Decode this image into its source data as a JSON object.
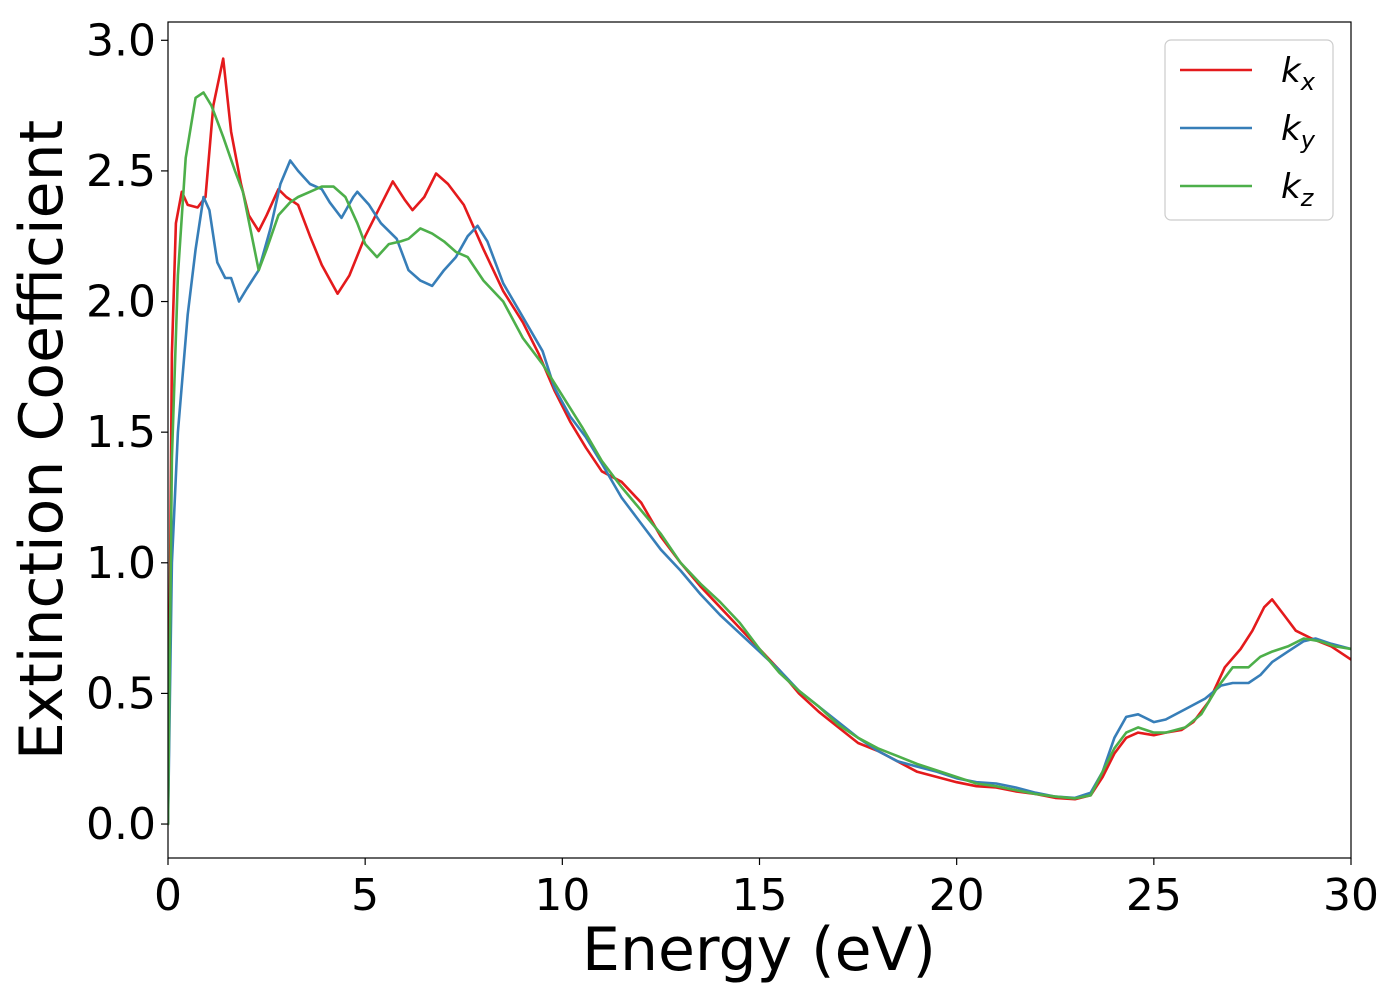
{
  "chart_data": {
    "type": "line",
    "xlabel": "Energy (eV)",
    "ylabel": "Extinction Coefficient",
    "xlim": [
      0,
      30
    ],
    "ylim": [
      -0.13,
      3.07
    ],
    "xticks": [
      0,
      5,
      10,
      15,
      20,
      25,
      30
    ],
    "xtick_labels": [
      "0",
      "5",
      "10",
      "15",
      "20",
      "25",
      "30"
    ],
    "yticks": [
      0.0,
      0.5,
      1.0,
      1.5,
      2.0,
      2.5,
      3.0
    ],
    "ytick_labels": [
      "0.0",
      "0.5",
      "1.0",
      "1.5",
      "2.0",
      "2.5",
      "3.0"
    ],
    "grid": false,
    "legend_position": "top-right",
    "series": [
      {
        "name": "k",
        "subscript": "x",
        "color": "#e41a1c",
        "points": [
          [
            0,
            0
          ],
          [
            0.1,
            1.8
          ],
          [
            0.2,
            2.3
          ],
          [
            0.35,
            2.42
          ],
          [
            0.5,
            2.37
          ],
          [
            0.75,
            2.36
          ],
          [
            0.95,
            2.4
          ],
          [
            1.15,
            2.75
          ],
          [
            1.4,
            2.93
          ],
          [
            1.6,
            2.65
          ],
          [
            1.85,
            2.45
          ],
          [
            2.05,
            2.33
          ],
          [
            2.3,
            2.27
          ],
          [
            2.5,
            2.33
          ],
          [
            2.8,
            2.43
          ],
          [
            3.0,
            2.4
          ],
          [
            3.3,
            2.37
          ],
          [
            3.6,
            2.25
          ],
          [
            3.9,
            2.14
          ],
          [
            4.3,
            2.03
          ],
          [
            4.6,
            2.1
          ],
          [
            5.0,
            2.25
          ],
          [
            5.3,
            2.34
          ],
          [
            5.7,
            2.46
          ],
          [
            6.0,
            2.39
          ],
          [
            6.2,
            2.35
          ],
          [
            6.5,
            2.4
          ],
          [
            6.8,
            2.49
          ],
          [
            7.1,
            2.45
          ],
          [
            7.5,
            2.37
          ],
          [
            8.0,
            2.2
          ],
          [
            8.5,
            2.04
          ],
          [
            9.0,
            1.92
          ],
          [
            9.4,
            1.8
          ],
          [
            9.8,
            1.66
          ],
          [
            10.2,
            1.54
          ],
          [
            10.6,
            1.44
          ],
          [
            11.0,
            1.35
          ],
          [
            11.5,
            1.31
          ],
          [
            12.0,
            1.23
          ],
          [
            12.5,
            1.1
          ],
          [
            13.0,
            1.0
          ],
          [
            13.5,
            0.91
          ],
          [
            14.0,
            0.83
          ],
          [
            14.5,
            0.75
          ],
          [
            15.0,
            0.67
          ],
          [
            15.5,
            0.59
          ],
          [
            16.0,
            0.5
          ],
          [
            16.5,
            0.43
          ],
          [
            17.0,
            0.37
          ],
          [
            17.5,
            0.31
          ],
          [
            18.0,
            0.28
          ],
          [
            18.5,
            0.24
          ],
          [
            19.0,
            0.2
          ],
          [
            19.5,
            0.18
          ],
          [
            20.0,
            0.16
          ],
          [
            20.5,
            0.145
          ],
          [
            21.0,
            0.14
          ],
          [
            21.5,
            0.125
          ],
          [
            22.0,
            0.115
          ],
          [
            22.5,
            0.1
          ],
          [
            23.0,
            0.095
          ],
          [
            23.4,
            0.11
          ],
          [
            23.7,
            0.18
          ],
          [
            24.0,
            0.27
          ],
          [
            24.3,
            0.33
          ],
          [
            24.6,
            0.35
          ],
          [
            25.0,
            0.34
          ],
          [
            25.3,
            0.35
          ],
          [
            25.7,
            0.36
          ],
          [
            26.0,
            0.39
          ],
          [
            26.4,
            0.47
          ],
          [
            26.8,
            0.6
          ],
          [
            27.2,
            0.67
          ],
          [
            27.5,
            0.74
          ],
          [
            27.8,
            0.83
          ],
          [
            28.0,
            0.86
          ],
          [
            28.3,
            0.8
          ],
          [
            28.6,
            0.74
          ],
          [
            29.0,
            0.71
          ],
          [
            29.5,
            0.68
          ],
          [
            30.0,
            0.63
          ]
        ]
      },
      {
        "name": "k",
        "subscript": "y",
        "color": "#377eb8",
        "points": [
          [
            0,
            0
          ],
          [
            0.1,
            1.0
          ],
          [
            0.25,
            1.5
          ],
          [
            0.5,
            1.95
          ],
          [
            0.7,
            2.2
          ],
          [
            0.9,
            2.4
          ],
          [
            1.05,
            2.35
          ],
          [
            1.25,
            2.15
          ],
          [
            1.45,
            2.09
          ],
          [
            1.6,
            2.09
          ],
          [
            1.8,
            2.0
          ],
          [
            2.0,
            2.05
          ],
          [
            2.3,
            2.12
          ],
          [
            2.6,
            2.28
          ],
          [
            2.85,
            2.45
          ],
          [
            3.1,
            2.54
          ],
          [
            3.3,
            2.5
          ],
          [
            3.6,
            2.45
          ],
          [
            3.9,
            2.43
          ],
          [
            4.1,
            2.38
          ],
          [
            4.4,
            2.32
          ],
          [
            4.7,
            2.4
          ],
          [
            4.8,
            2.42
          ],
          [
            5.1,
            2.37
          ],
          [
            5.4,
            2.3
          ],
          [
            5.8,
            2.24
          ],
          [
            6.1,
            2.12
          ],
          [
            6.4,
            2.08
          ],
          [
            6.7,
            2.06
          ],
          [
            7.0,
            2.12
          ],
          [
            7.3,
            2.17
          ],
          [
            7.6,
            2.25
          ],
          [
            7.85,
            2.29
          ],
          [
            8.1,
            2.23
          ],
          [
            8.5,
            2.07
          ],
          [
            9.0,
            1.94
          ],
          [
            9.5,
            1.81
          ],
          [
            9.8,
            1.67
          ],
          [
            10.2,
            1.56
          ],
          [
            10.6,
            1.48
          ],
          [
            11.0,
            1.38
          ],
          [
            11.5,
            1.25
          ],
          [
            12.0,
            1.15
          ],
          [
            12.5,
            1.05
          ],
          [
            13.0,
            0.97
          ],
          [
            13.5,
            0.88
          ],
          [
            14.0,
            0.8
          ],
          [
            14.5,
            0.73
          ],
          [
            15.0,
            0.66
          ],
          [
            15.5,
            0.59
          ],
          [
            16.0,
            0.51
          ],
          [
            16.5,
            0.45
          ],
          [
            17.0,
            0.39
          ],
          [
            17.5,
            0.33
          ],
          [
            18.0,
            0.28
          ],
          [
            18.5,
            0.24
          ],
          [
            19.0,
            0.22
          ],
          [
            19.5,
            0.2
          ],
          [
            20.0,
            0.175
          ],
          [
            20.5,
            0.16
          ],
          [
            21.0,
            0.155
          ],
          [
            21.5,
            0.14
          ],
          [
            22.0,
            0.12
          ],
          [
            22.5,
            0.105
          ],
          [
            23.0,
            0.1
          ],
          [
            23.4,
            0.12
          ],
          [
            23.7,
            0.2
          ],
          [
            24.0,
            0.33
          ],
          [
            24.3,
            0.41
          ],
          [
            24.6,
            0.42
          ],
          [
            25.0,
            0.39
          ],
          [
            25.3,
            0.4
          ],
          [
            25.8,
            0.44
          ],
          [
            26.3,
            0.48
          ],
          [
            26.7,
            0.53
          ],
          [
            27.0,
            0.54
          ],
          [
            27.4,
            0.54
          ],
          [
            27.7,
            0.57
          ],
          [
            28.0,
            0.62
          ],
          [
            28.4,
            0.66
          ],
          [
            28.8,
            0.7
          ],
          [
            29.1,
            0.71
          ],
          [
            29.5,
            0.69
          ],
          [
            30.0,
            0.67
          ]
        ]
      },
      {
        "name": "k",
        "subscript": "z",
        "color": "#4daf4a",
        "points": [
          [
            0,
            0
          ],
          [
            0.1,
            1.4
          ],
          [
            0.25,
            2.1
          ],
          [
            0.45,
            2.55
          ],
          [
            0.7,
            2.78
          ],
          [
            0.9,
            2.8
          ],
          [
            1.1,
            2.75
          ],
          [
            1.4,
            2.63
          ],
          [
            1.7,
            2.5
          ],
          [
            1.9,
            2.42
          ],
          [
            2.1,
            2.27
          ],
          [
            2.3,
            2.12
          ],
          [
            2.5,
            2.2
          ],
          [
            2.8,
            2.33
          ],
          [
            3.1,
            2.38
          ],
          [
            3.3,
            2.4
          ],
          [
            3.6,
            2.42
          ],
          [
            3.9,
            2.44
          ],
          [
            4.2,
            2.44
          ],
          [
            4.5,
            2.4
          ],
          [
            4.8,
            2.3
          ],
          [
            5.0,
            2.22
          ],
          [
            5.3,
            2.17
          ],
          [
            5.6,
            2.22
          ],
          [
            5.9,
            2.23
          ],
          [
            6.1,
            2.24
          ],
          [
            6.4,
            2.28
          ],
          [
            6.7,
            2.26
          ],
          [
            7.0,
            2.23
          ],
          [
            7.3,
            2.19
          ],
          [
            7.6,
            2.17
          ],
          [
            8.0,
            2.08
          ],
          [
            8.5,
            2.0
          ],
          [
            9.0,
            1.86
          ],
          [
            9.5,
            1.76
          ],
          [
            10.0,
            1.64
          ],
          [
            10.5,
            1.52
          ],
          [
            11.0,
            1.39
          ],
          [
            11.5,
            1.29
          ],
          [
            12.0,
            1.2
          ],
          [
            12.5,
            1.11
          ],
          [
            13.0,
            1.0
          ],
          [
            13.5,
            0.92
          ],
          [
            14.0,
            0.85
          ],
          [
            14.5,
            0.77
          ],
          [
            15.0,
            0.67
          ],
          [
            15.5,
            0.58
          ],
          [
            16.0,
            0.51
          ],
          [
            16.5,
            0.45
          ],
          [
            17.0,
            0.38
          ],
          [
            17.5,
            0.33
          ],
          [
            18.0,
            0.29
          ],
          [
            18.5,
            0.26
          ],
          [
            19.0,
            0.23
          ],
          [
            19.5,
            0.205
          ],
          [
            20.0,
            0.18
          ],
          [
            20.5,
            0.155
          ],
          [
            21.0,
            0.145
          ],
          [
            21.5,
            0.13
          ],
          [
            22.0,
            0.115
          ],
          [
            22.5,
            0.105
          ],
          [
            23.0,
            0.098
          ],
          [
            23.4,
            0.11
          ],
          [
            23.7,
            0.2
          ],
          [
            24.0,
            0.29
          ],
          [
            24.3,
            0.35
          ],
          [
            24.6,
            0.37
          ],
          [
            25.0,
            0.35
          ],
          [
            25.3,
            0.35
          ],
          [
            25.8,
            0.37
          ],
          [
            26.2,
            0.42
          ],
          [
            26.6,
            0.52
          ],
          [
            27.0,
            0.6
          ],
          [
            27.4,
            0.6
          ],
          [
            27.7,
            0.64
          ],
          [
            28.0,
            0.66
          ],
          [
            28.4,
            0.68
          ],
          [
            28.8,
            0.71
          ],
          [
            29.2,
            0.7
          ],
          [
            29.6,
            0.68
          ],
          [
            30.0,
            0.67
          ]
        ]
      }
    ]
  }
}
